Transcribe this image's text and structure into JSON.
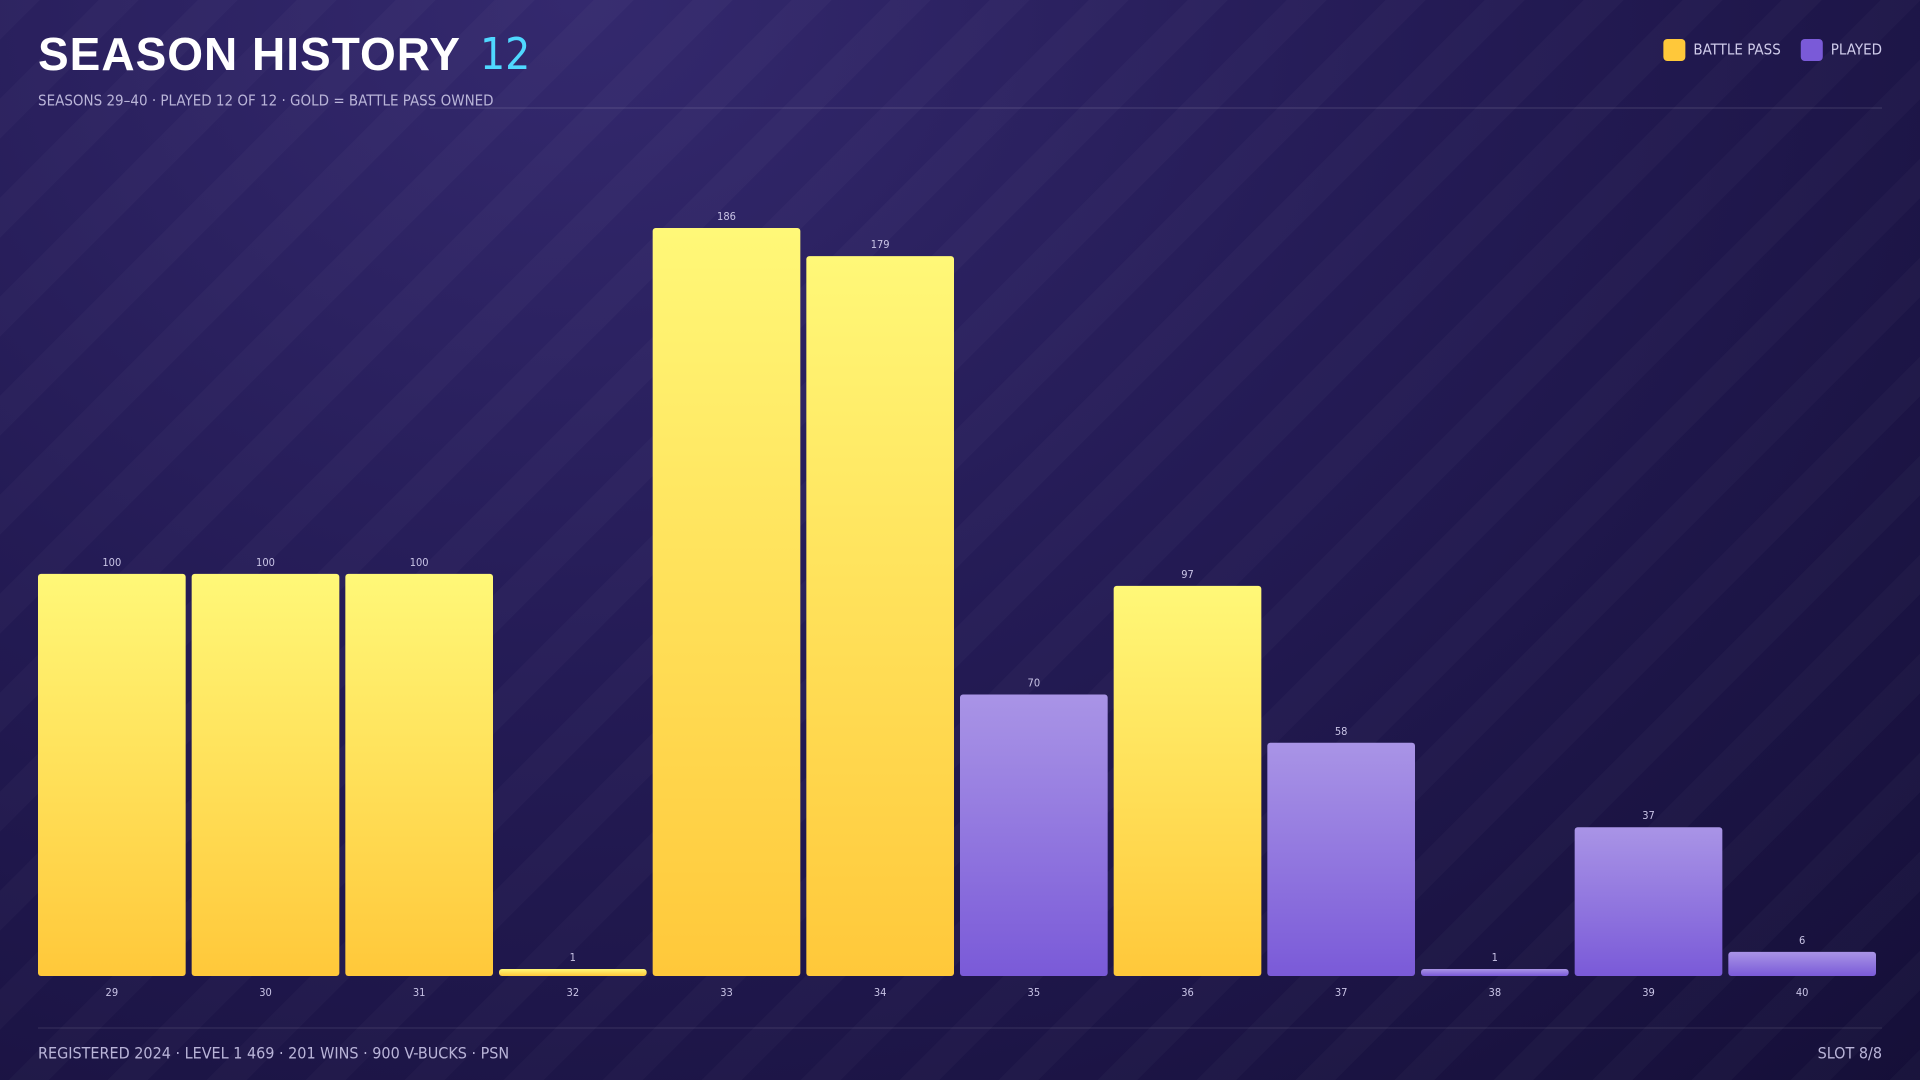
{
  "chart_data": {
    "type": "bar",
    "title": "SEASON HISTORY",
    "badge": 12,
    "subtitle": "SEASONS 29–40 · PLAYED 12 OF 12 · GOLD = BATTLE PASS OWNED",
    "categories": [
      "29",
      "30",
      "31",
      "32",
      "33",
      "34",
      "35",
      "36",
      "37",
      "38",
      "39",
      "40"
    ],
    "series": [
      {
        "name": "BATTLE PASS",
        "color": "#ffc83a",
        "values": [
          100,
          100,
          100,
          1,
          186,
          179,
          null,
          97,
          null,
          null,
          null,
          null
        ]
      },
      {
        "name": "PLAYED",
        "color": "#7a5ad8",
        "values": [
          null,
          null,
          null,
          null,
          null,
          null,
          70,
          null,
          58,
          1,
          37,
          6
        ]
      }
    ],
    "legend": "top-right"
  },
  "footer": {
    "info": "REGISTERED 2024 · LEVEL 1 469 · 201 WINS · 900 V-BUCKS · PSN",
    "slot": "SLOT 8/8"
  }
}
